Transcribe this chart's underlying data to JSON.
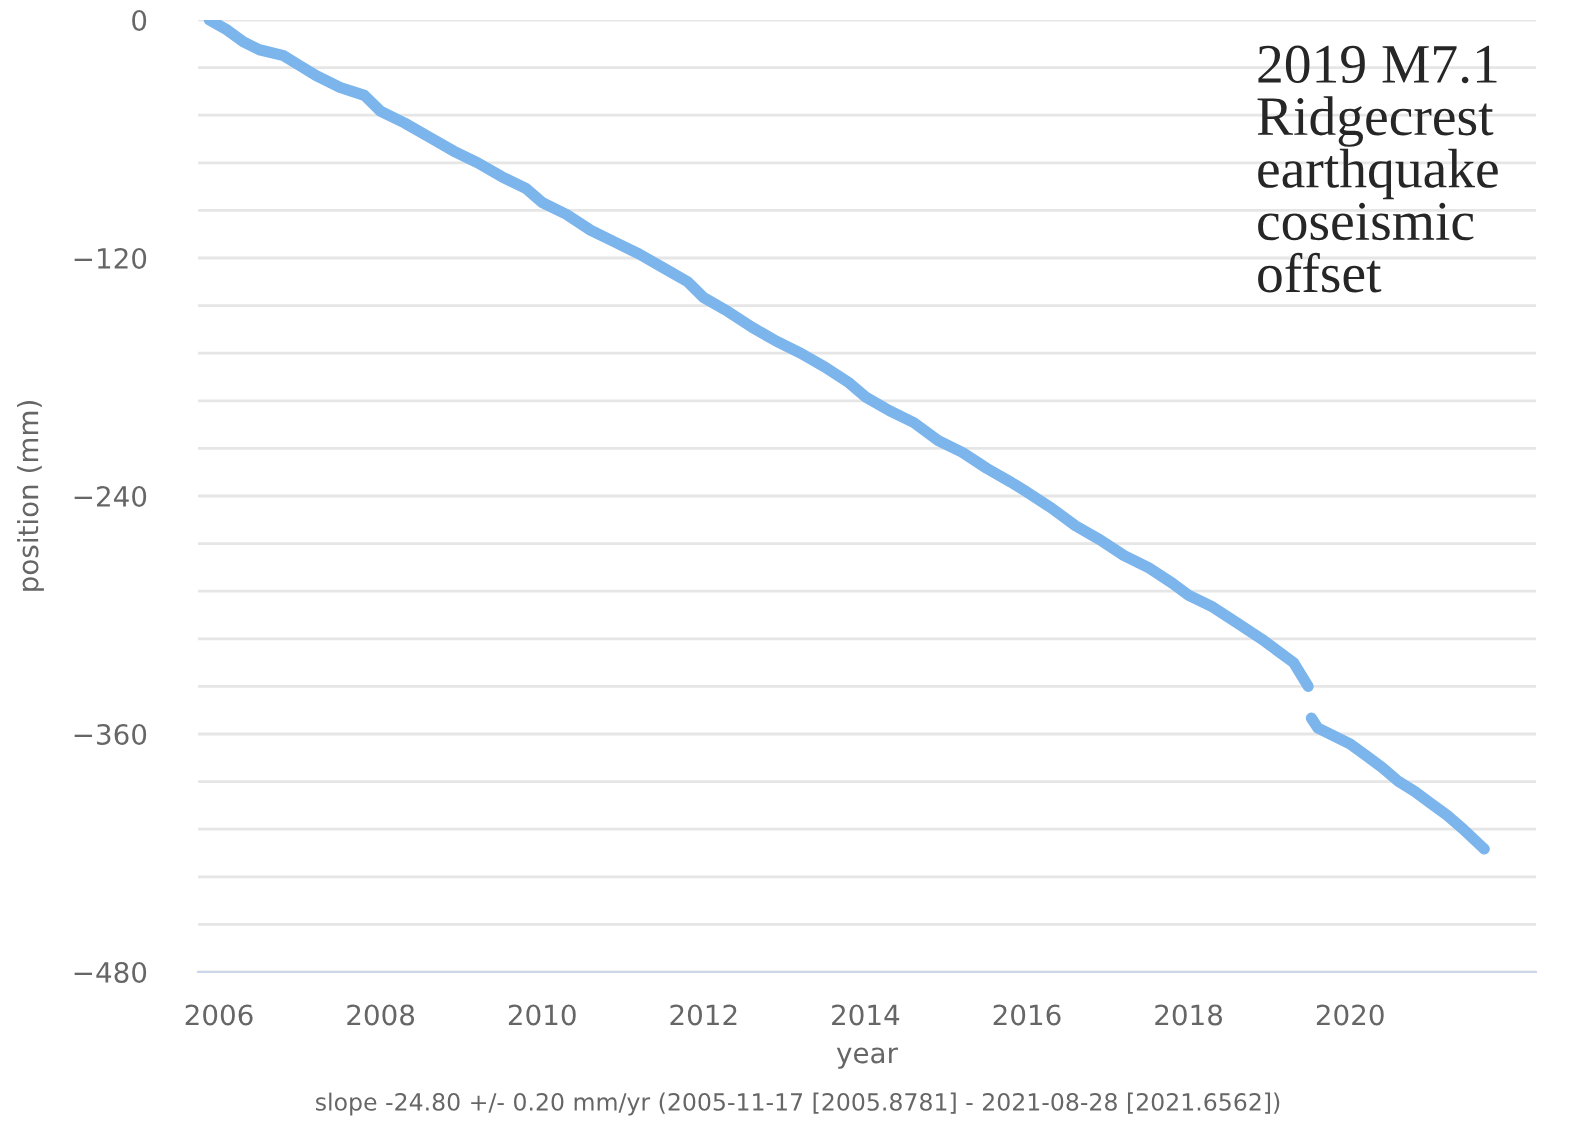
{
  "chart_data": {
    "type": "line",
    "xlabel": "year",
    "ylabel": "position (mm)",
    "annotations": [
      "2019 M7.1\nRidgecrest\nearthquake\ncoseismic\noffset",
      "slope -24.80 +/- 0.20 mm/yr (2005-11-17 [2005.8781] - 2021-08-28 [2021.6562])"
    ],
    "series": [
      {
        "color": "#7cb5ec",
        "x": [
          2005.88,
          2006.1,
          2006.3,
          2006.5,
          2006.8,
          2007.0,
          2007.2,
          2007.5,
          2007.8,
          2008.0,
          2008.3,
          2008.6,
          2008.9,
          2009.2,
          2009.5,
          2009.8,
          2010.0,
          2010.3,
          2010.6,
          2010.9,
          2011.2,
          2011.5,
          2011.8,
          2012.0,
          2012.3,
          2012.6,
          2012.9,
          2013.2,
          2013.5,
          2013.8,
          2014.0,
          2014.3,
          2014.6,
          2014.9,
          2015.2,
          2015.5,
          2015.8,
          2016.0,
          2016.3,
          2016.6,
          2016.9,
          2017.2,
          2017.5,
          2017.8,
          2018.0,
          2018.3,
          2018.6,
          2018.9,
          2019.1,
          2019.3,
          2019.48,
          2019.5,
          2019.52,
          2019.6,
          2019.8,
          2020.0,
          2020.2,
          2020.4,
          2020.6,
          2020.8,
          2021.0,
          2021.2,
          2021.4,
          2021.66
        ],
        "values": [
          0,
          -5,
          -11,
          -15,
          -18,
          -23,
          -28,
          -34,
          -38,
          -46,
          -52,
          -59,
          -66,
          -72,
          -79,
          -85,
          -92,
          -98,
          -106,
          -112,
          -118,
          -125,
          -132,
          -140,
          -147,
          -155,
          -162,
          -168,
          -175,
          -183,
          -190,
          -197,
          -203,
          -212,
          -218,
          -226,
          -233,
          -238,
          -246,
          -255,
          -262,
          -270,
          -276,
          -284,
          -290,
          -296,
          -304,
          -312,
          -318,
          -324,
          -336,
          null,
          -352,
          -357,
          -361,
          -365,
          -371,
          -377,
          -384,
          -389,
          -395,
          -401,
          -408,
          -418
        ]
      }
    ],
    "xlim": [
      2005.74,
      2022.3
    ],
    "xticks": [
      2006,
      2008,
      2010,
      2012,
      2014,
      2016,
      2018,
      2020
    ],
    "ylim": [
      -480,
      0
    ],
    "yticks": [
      {
        "value": -480,
        "label": "−480"
      },
      {
        "value": -456,
        "label": null
      },
      {
        "value": -432,
        "label": null
      },
      {
        "value": -408,
        "label": null
      },
      {
        "value": -384,
        "label": null
      },
      {
        "value": -360,
        "label": "−360"
      },
      {
        "value": -336,
        "label": null
      },
      {
        "value": -312,
        "label": null
      },
      {
        "value": -288,
        "label": null
      },
      {
        "value": -264,
        "label": null
      },
      {
        "value": -240,
        "label": "−240"
      },
      {
        "value": -216,
        "label": null
      },
      {
        "value": -192,
        "label": null
      },
      {
        "value": -168,
        "label": null
      },
      {
        "value": -144,
        "label": null
      },
      {
        "value": -120,
        "label": "−120"
      },
      {
        "value": -96,
        "label": null
      },
      {
        "value": -72,
        "label": null
      },
      {
        "value": -48,
        "label": null
      },
      {
        "value": -24,
        "label": null
      },
      0
    ],
    "grid": "y",
    "line_style": "solid",
    "marker": "none"
  }
}
